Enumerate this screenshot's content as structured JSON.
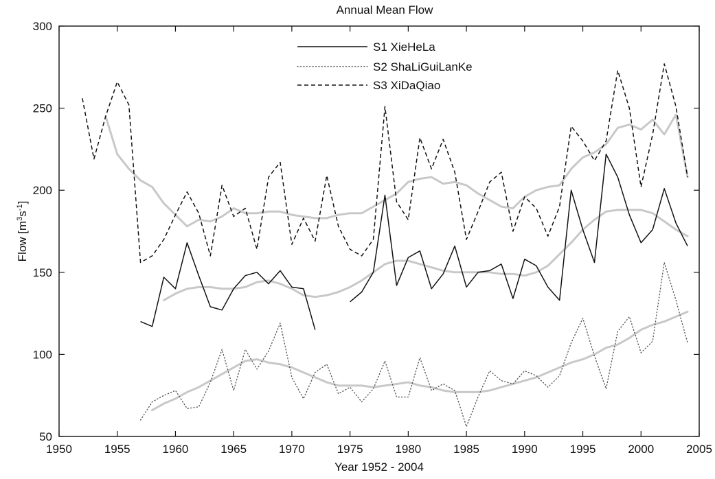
{
  "chart_data": {
    "type": "line",
    "title": "Annual Mean Flow",
    "xlabel": "Year 1952 - 2004",
    "ylabel": {
      "prefix": "Flow [m",
      "sup1": "3",
      "mid": "s",
      "sup2": "-1",
      "suffix": "]"
    },
    "xlim": [
      1950,
      2005
    ],
    "ylim": [
      50,
      300
    ],
    "xticks": [
      1950,
      1955,
      1960,
      1965,
      1970,
      1975,
      1980,
      1985,
      1990,
      1995,
      2000,
      2005
    ],
    "yticks": [
      50,
      100,
      150,
      200,
      250,
      300
    ],
    "grid": false,
    "legend_position": "top-center",
    "legend": [
      {
        "label": "S1 XieHeLa",
        "style": "solid",
        "color": "#111111"
      },
      {
        "label": "S2 ShaLiGuiLanKe",
        "style": "dotted",
        "color": "#555555"
      },
      {
        "label": "S3 XiDaQiao",
        "style": "dashed",
        "color": "#111111"
      }
    ],
    "series": [
      {
        "name": "S1 XieHeLa",
        "style": "solid",
        "color": "#111111",
        "segments": [
          {
            "x": [
              1957,
              1958,
              1959,
              1960,
              1961,
              1962,
              1963,
              1964,
              1965,
              1966,
              1967,
              1968,
              1969,
              1970,
              1971,
              1972
            ],
            "y": [
              120,
              117,
              147,
              140,
              168,
              148,
              129,
              127,
              140,
              148,
              150,
              143,
              151,
              141,
              140,
              115
            ]
          },
          {
            "x": [
              1975,
              1976,
              1977,
              1978,
              1979,
              1980,
              1981,
              1982,
              1983,
              1984,
              1985,
              1986,
              1987,
              1988,
              1989,
              1990,
              1991,
              1992,
              1993,
              1994,
              1995,
              1996,
              1997,
              1998,
              1999,
              2000,
              2001,
              2002,
              2003,
              2004
            ],
            "y": [
              132,
              138,
              150,
              197,
              142,
              159,
              163,
              140,
              149,
              166,
              141,
              150,
              151,
              155,
              134,
              158,
              154,
              141,
              133,
              200,
              176,
              156,
              222,
              208,
              185,
              168,
              176,
              201,
              180,
              166
            ]
          }
        ]
      },
      {
        "name": "S2 ShaLiGuiLanKe",
        "style": "dotted",
        "color": "#555555",
        "segments": [
          {
            "x": [
              1957,
              1958,
              1959,
              1960,
              1961,
              1962,
              1963,
              1964,
              1965,
              1966,
              1967,
              1968,
              1969,
              1970,
              1971,
              1972,
              1973,
              1974,
              1975,
              1976,
              1977,
              1978,
              1979,
              1980,
              1981,
              1982,
              1983,
              1984,
              1985,
              1986,
              1987,
              1988,
              1989,
              1990,
              1991,
              1992,
              1993,
              1994,
              1995,
              1996,
              1997,
              1998,
              1999,
              2000,
              2001,
              2002,
              2003,
              2004
            ],
            "y": [
              60,
              71,
              75,
              78,
              67,
              68,
              83,
              103,
              78,
              103,
              91,
              102,
              119,
              86,
              73,
              89,
              94,
              76,
              80,
              71,
              79,
              96,
              74,
              74,
              98,
              78,
              82,
              78,
              56,
              74,
              90,
              84,
              82,
              90,
              87,
              80,
              87,
              107,
              122,
              99,
              79,
              114,
              123,
              101,
              108,
              156,
              133,
              107
            ]
          }
        ]
      },
      {
        "name": "S3 XiDaQiao",
        "style": "dashed",
        "color": "#111111",
        "segments": [
          {
            "x": [
              1952,
              1953,
              1954,
              1955,
              1956,
              1957,
              1958,
              1959,
              1960,
              1961,
              1962,
              1963,
              1964,
              1965,
              1966,
              1967,
              1968,
              1969,
              1970,
              1971,
              1972,
              1973,
              1974,
              1975,
              1976,
              1977,
              1978,
              1979,
              1980,
              1981,
              1982,
              1983,
              1984,
              1985,
              1986,
              1987,
              1988,
              1989,
              1990,
              1991,
              1992,
              1993,
              1994,
              1995,
              1996,
              1997,
              1998,
              1999,
              2000,
              2001,
              2002,
              2003,
              2004
            ],
            "y": [
              256,
              219,
              245,
              266,
              252,
              156,
              160,
              170,
              185,
              199,
              186,
              160,
              203,
              184,
              189,
              164,
              208,
              217,
              167,
              183,
              169,
              209,
              178,
              164,
              160,
              170,
              251,
              193,
              182,
              232,
              213,
              231,
              211,
              170,
              187,
              205,
              211,
              175,
              196,
              189,
              172,
              190,
              239,
              230,
              218,
              230,
              273,
              250,
              202,
              234,
              277,
              251,
              208
            ]
          }
        ]
      },
      {
        "name": "",
        "style": "trend",
        "color": "#c8c8c8",
        "segments": [
          {
            "x": [
              1954,
              1955,
              1956,
              1957,
              1958,
              1959,
              1960,
              1961,
              1962,
              1963,
              1964,
              1965,
              1966,
              1967,
              1968,
              1969,
              1970,
              1971,
              1972,
              1973,
              1974,
              1975,
              1976,
              1977,
              1978,
              1979,
              1980,
              1981,
              1982,
              1983,
              1984,
              1985,
              1986,
              1987,
              1988,
              1989,
              1990,
              1991,
              1992,
              1993,
              1994,
              1995,
              1996,
              1997,
              1998,
              1999,
              2000,
              2001,
              2002,
              2003,
              2004
            ],
            "y": [
              245,
              222,
              213,
              206,
              202,
              192,
              185,
              178,
              182,
              181,
              184,
              189,
              186,
              186,
              187,
              187,
              185,
              184,
              183,
              183,
              185,
              186,
              186,
              190,
              194,
              198,
              205,
              207,
              208,
              204,
              205,
              203,
              198,
              194,
              190,
              189,
              196,
              200,
              202,
              203,
              213,
              220,
              223,
              228,
              238,
              240,
              237,
              243,
              234,
              246,
              208
            ]
          }
        ]
      },
      {
        "name": "",
        "style": "trend",
        "color": "#c8c8c8",
        "segments": [
          {
            "x": [
              1959,
              1960,
              1961,
              1962,
              1963,
              1964,
              1965,
              1966,
              1967,
              1968,
              1969,
              1970,
              1971,
              1972,
              1973,
              1974,
              1975,
              1976,
              1977,
              1978,
              1979,
              1980,
              1981,
              1982,
              1983,
              1984,
              1985,
              1986,
              1987,
              1988,
              1989,
              1990,
              1991,
              1992,
              1993,
              1994,
              1995,
              1996,
              1997,
              1998,
              1999,
              2000,
              2001,
              2002,
              2003,
              2004
            ],
            "y": [
              133,
              137,
              140,
              141,
              141,
              140,
              140,
              141,
              144,
              145,
              143,
              140,
              136,
              135,
              136,
              138,
              141,
              145,
              150,
              155,
              157,
              157,
              155,
              153,
              151,
              150,
              150,
              150,
              150,
              149,
              149,
              148,
              150,
              154,
              161,
              168,
              176,
              182,
              187,
              188,
              188,
              188,
              186,
              181,
              176,
              172
            ]
          }
        ]
      },
      {
        "name": "",
        "style": "trend",
        "color": "#c8c8c8",
        "segments": [
          {
            "x": [
              1958,
              1959,
              1960,
              1961,
              1962,
              1963,
              1964,
              1965,
              1966,
              1967,
              1968,
              1969,
              1970,
              1971,
              1972,
              1973,
              1974,
              1975,
              1976,
              1977,
              1978,
              1979,
              1980,
              1981,
              1982,
              1983,
              1984,
              1985,
              1986,
              1987,
              1988,
              1989,
              1990,
              1991,
              1992,
              1993,
              1994,
              1995,
              1996,
              1997,
              1998,
              1999,
              2000,
              2001,
              2002,
              2003,
              2004
            ],
            "y": [
              66,
              70,
              73,
              77,
              80,
              84,
              88,
              92,
              96,
              97,
              95,
              94,
              92,
              89,
              86,
              83,
              81,
              81,
              81,
              80,
              81,
              82,
              83,
              81,
              80,
              78,
              77,
              77,
              77,
              78,
              80,
              82,
              84,
              86,
              89,
              92,
              95,
              97,
              100,
              104,
              106,
              110,
              115,
              118,
              120,
              123,
              126
            ]
          }
        ]
      }
    ]
  }
}
